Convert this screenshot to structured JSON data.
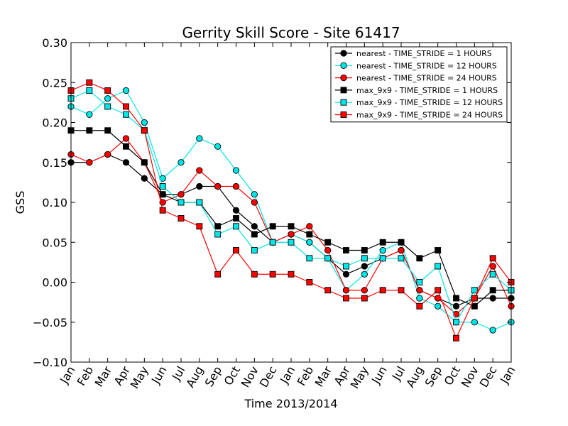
{
  "chart_data": {
    "type": "line",
    "title": "Gerrity Skill Score - Site 61417",
    "xlabel": "Time 2013/2014",
    "ylabel": "GSS",
    "ylim": [
      -0.1,
      0.3
    ],
    "yticks": [
      -0.1,
      -0.05,
      0.0,
      0.05,
      0.1,
      0.15,
      0.2,
      0.25,
      0.3
    ],
    "ytick_labels": [
      "−0.10",
      "−0.05",
      "0.00",
      "0.05",
      "0.10",
      "0.15",
      "0.20",
      "0.25",
      "0.30"
    ],
    "categories": [
      "Jan",
      "Feb",
      "Mar",
      "Apr",
      "May",
      "Jun",
      "Jul",
      "Aug",
      "Sep",
      "Oct",
      "Nov",
      "Dec",
      "Jan",
      "Feb",
      "Mar",
      "Apr",
      "May",
      "Jun",
      "Jul",
      "Aug",
      "Sep",
      "Oct",
      "Nov",
      "Dec",
      "Jan"
    ],
    "legend_position": "top-right",
    "grid": false,
    "series": [
      {
        "name": "nearest - TIME_STRIDE = 1 HOURS",
        "color": "#000000",
        "marker": "circle",
        "values": [
          0.15,
          0.15,
          0.16,
          0.15,
          0.13,
          0.11,
          0.11,
          0.12,
          0.12,
          0.09,
          0.07,
          0.05,
          0.06,
          0.05,
          0.03,
          0.01,
          0.02,
          0.03,
          0.04,
          -0.01,
          -0.02,
          -0.03,
          -0.02,
          -0.02,
          -0.02
        ]
      },
      {
        "name": "nearest - TIME_STRIDE = 12 HOURS",
        "color": "#00e5e5",
        "marker": "circle",
        "values": [
          0.22,
          0.21,
          0.23,
          0.24,
          0.2,
          0.13,
          0.15,
          0.18,
          0.17,
          0.14,
          0.11,
          0.05,
          0.06,
          0.05,
          0.03,
          -0.01,
          0.01,
          0.04,
          0.05,
          -0.02,
          -0.03,
          -0.05,
          -0.05,
          -0.06,
          -0.05
        ]
      },
      {
        "name": "nearest - TIME_STRIDE = 24 HOURS",
        "color": "#ff0000",
        "marker": "circle",
        "values": [
          0.16,
          0.15,
          0.16,
          0.18,
          0.15,
          0.1,
          0.11,
          0.14,
          0.12,
          0.12,
          0.1,
          0.05,
          0.06,
          0.07,
          0.04,
          -0.01,
          -0.01,
          0.03,
          0.04,
          -0.01,
          -0.02,
          -0.04,
          -0.02,
          0.02,
          -0.03
        ]
      },
      {
        "name": "max_9x9 - TIME_STRIDE = 1 HOURS",
        "color": "#000000",
        "marker": "square",
        "values": [
          0.19,
          0.19,
          0.19,
          0.17,
          0.15,
          0.11,
          0.1,
          0.1,
          0.07,
          0.08,
          0.06,
          0.07,
          0.07,
          0.06,
          0.05,
          0.04,
          0.04,
          0.05,
          0.05,
          0.03,
          0.04,
          -0.02,
          -0.03,
          -0.01,
          -0.01
        ]
      },
      {
        "name": "max_9x9 - TIME_STRIDE = 12 HOURS",
        "color": "#00e5e5",
        "marker": "square",
        "values": [
          0.23,
          0.24,
          0.22,
          0.21,
          0.19,
          0.12,
          0.1,
          0.1,
          0.06,
          0.07,
          0.04,
          0.05,
          0.05,
          0.03,
          0.03,
          0.02,
          0.03,
          0.03,
          0.03,
          0.0,
          0.02,
          -0.05,
          -0.01,
          0.01,
          -0.01
        ]
      },
      {
        "name": "max_9x9 - TIME_STRIDE = 24 HOURS",
        "color": "#ff0000",
        "marker": "square",
        "values": [
          0.24,
          0.25,
          0.24,
          0.22,
          0.19,
          0.09,
          0.08,
          0.07,
          0.01,
          0.04,
          0.01,
          0.01,
          0.01,
          0.0,
          -0.01,
          -0.02,
          -0.02,
          -0.01,
          -0.01,
          -0.03,
          -0.01,
          -0.07,
          -0.02,
          0.03,
          0.0
        ]
      }
    ]
  }
}
